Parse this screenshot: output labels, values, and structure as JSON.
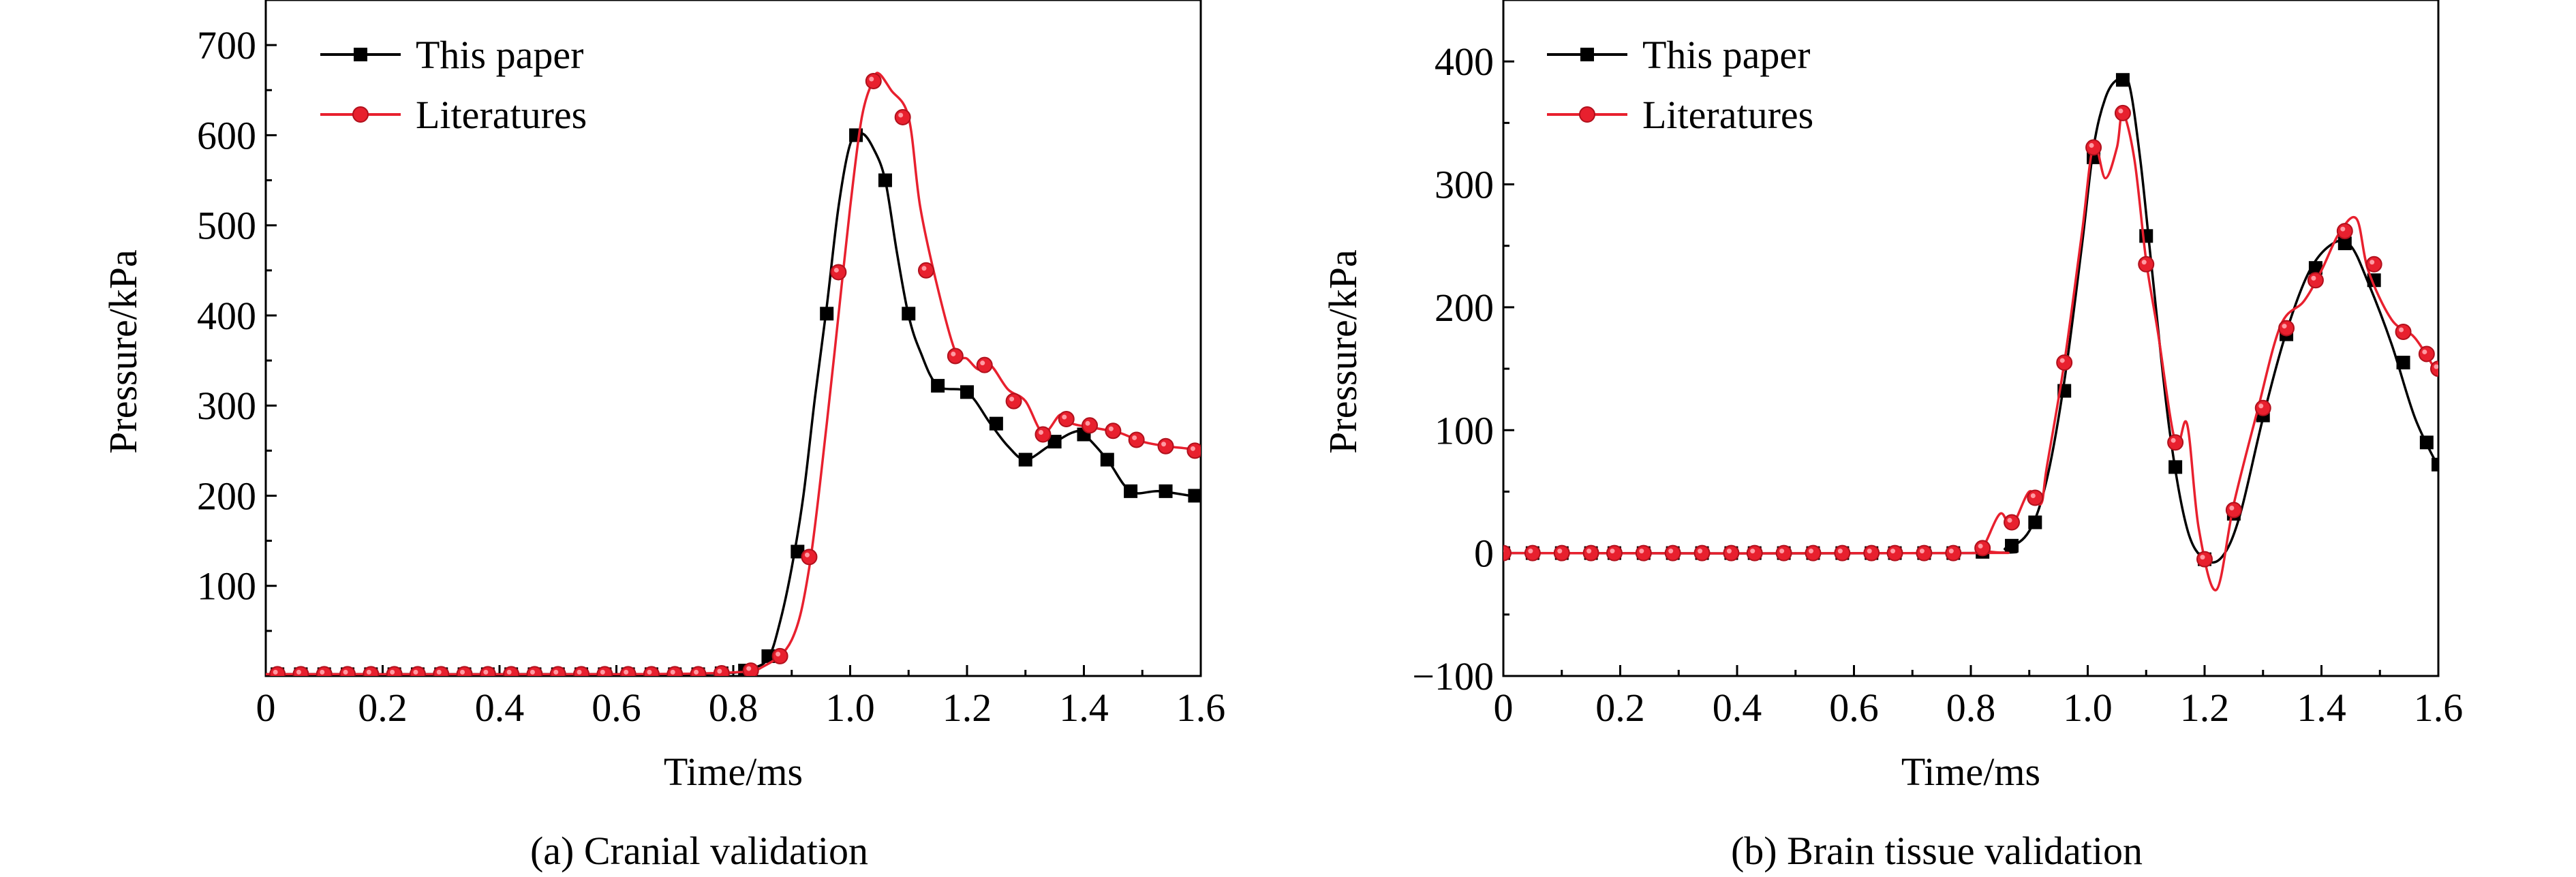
{
  "chart_data": [
    {
      "type": "line",
      "caption": "(a) Cranial validation",
      "xlabel": "Time/ms",
      "ylabel": "Pressure/kPa",
      "xlim": [
        0,
        1.6
      ],
      "ylim": [
        0,
        750
      ],
      "xticks": [
        0,
        0.2,
        0.4,
        0.6,
        0.8,
        1.0,
        1.2,
        1.4,
        1.6
      ],
      "xtick_labels": [
        "0",
        "0.2",
        "0.4",
        "0.6",
        "0.8",
        "1.0",
        "1.2",
        "1.4",
        "1.6"
      ],
      "yticks": [
        100,
        200,
        300,
        400,
        500,
        600,
        700
      ],
      "ytick_labels": [
        "100",
        "200",
        "300",
        "400",
        "500",
        "600",
        "700"
      ],
      "legend_position": "top-left",
      "series": [
        {
          "name": "This paper",
          "color": "#000000",
          "marker": "square",
          "line": [
            [
              0,
              2
            ],
            [
              0.6,
              2
            ],
            [
              0.78,
              3
            ],
            [
              0.83,
              8
            ],
            [
              0.86,
              20
            ],
            [
              0.88,
              60
            ],
            [
              0.9,
              120
            ],
            [
              0.92,
              200
            ],
            [
              0.94,
              310
            ],
            [
              0.96,
              410
            ],
            [
              0.98,
              520
            ],
            [
              1.0,
              590
            ],
            [
              1.02,
              602
            ],
            [
              1.04,
              585
            ],
            [
              1.06,
              550
            ],
            [
              1.08,
              470
            ],
            [
              1.1,
              400
            ],
            [
              1.12,
              360
            ],
            [
              1.15,
              322
            ],
            [
              1.2,
              315
            ],
            [
              1.24,
              280
            ],
            [
              1.27,
              255
            ],
            [
              1.3,
              240
            ],
            [
              1.34,
              255
            ],
            [
              1.38,
              270
            ],
            [
              1.4,
              268
            ],
            [
              1.44,
              240
            ],
            [
              1.48,
              205
            ],
            [
              1.53,
              205
            ],
            [
              1.6,
              198
            ]
          ],
          "markers": [
            [
              0.02,
              2
            ],
            [
              0.06,
              2
            ],
            [
              0.1,
              2
            ],
            [
              0.14,
              2
            ],
            [
              0.18,
              2
            ],
            [
              0.22,
              2
            ],
            [
              0.26,
              2
            ],
            [
              0.3,
              2
            ],
            [
              0.34,
              2
            ],
            [
              0.38,
              2
            ],
            [
              0.42,
              2
            ],
            [
              0.46,
              2
            ],
            [
              0.5,
              2
            ],
            [
              0.54,
              2
            ],
            [
              0.58,
              2
            ],
            [
              0.62,
              2
            ],
            [
              0.66,
              2
            ],
            [
              0.7,
              2
            ],
            [
              0.74,
              2
            ],
            [
              0.78,
              3
            ],
            [
              0.82,
              6
            ],
            [
              0.86,
              22
            ],
            [
              0.91,
              138
            ],
            [
              0.96,
              402
            ],
            [
              1.01,
              600
            ],
            [
              1.06,
              550
            ],
            [
              1.1,
              402
            ],
            [
              1.15,
              322
            ],
            [
              1.2,
              315
            ],
            [
              1.25,
              280
            ],
            [
              1.3,
              240
            ],
            [
              1.35,
              260
            ],
            [
              1.4,
              268
            ],
            [
              1.44,
              240
            ],
            [
              1.48,
              205
            ],
            [
              1.54,
              205
            ],
            [
              1.59,
              200
            ]
          ]
        },
        {
          "name": "Literatures",
          "color": "#e8202e",
          "marker": "circle",
          "line": [
            [
              0,
              2
            ],
            [
              0.6,
              2
            ],
            [
              0.8,
              4
            ],
            [
              0.85,
              10
            ],
            [
              0.9,
              40
            ],
            [
              0.93,
              120
            ],
            [
              0.96,
              280
            ],
            [
              0.98,
              400
            ],
            [
              1.0,
              520
            ],
            [
              1.02,
              620
            ],
            [
              1.04,
              662
            ],
            [
              1.05,
              668
            ],
            [
              1.07,
              650
            ],
            [
              1.1,
              620
            ],
            [
              1.12,
              520
            ],
            [
              1.15,
              430
            ],
            [
              1.18,
              360
            ],
            [
              1.2,
              352
            ],
            [
              1.22,
              340
            ],
            [
              1.24,
              345
            ],
            [
              1.27,
              318
            ],
            [
              1.3,
              305
            ],
            [
              1.33,
              270
            ],
            [
              1.36,
              290
            ],
            [
              1.38,
              280
            ],
            [
              1.42,
              275
            ],
            [
              1.46,
              270
            ],
            [
              1.5,
              260
            ],
            [
              1.54,
              255
            ],
            [
              1.58,
              252
            ],
            [
              1.6,
              248
            ]
          ],
          "markers": [
            [
              0.02,
              2
            ],
            [
              0.06,
              2
            ],
            [
              0.1,
              2
            ],
            [
              0.14,
              2
            ],
            [
              0.18,
              2
            ],
            [
              0.22,
              2
            ],
            [
              0.26,
              2
            ],
            [
              0.3,
              2
            ],
            [
              0.34,
              2
            ],
            [
              0.38,
              2
            ],
            [
              0.42,
              2
            ],
            [
              0.46,
              2
            ],
            [
              0.5,
              2
            ],
            [
              0.54,
              2
            ],
            [
              0.58,
              2
            ],
            [
              0.62,
              2
            ],
            [
              0.66,
              2
            ],
            [
              0.7,
              2
            ],
            [
              0.74,
              2
            ],
            [
              0.78,
              3
            ],
            [
              0.83,
              6
            ],
            [
              0.88,
              22
            ],
            [
              0.93,
              132
            ],
            [
              0.98,
              448
            ],
            [
              1.04,
              660
            ],
            [
              1.09,
              620
            ],
            [
              1.13,
              450
            ],
            [
              1.18,
              355
            ],
            [
              1.23,
              345
            ],
            [
              1.28,
              305
            ],
            [
              1.33,
              268
            ],
            [
              1.37,
              285
            ],
            [
              1.41,
              278
            ],
            [
              1.45,
              272
            ],
            [
              1.49,
              262
            ],
            [
              1.54,
              255
            ],
            [
              1.59,
              250
            ]
          ]
        }
      ]
    },
    {
      "type": "line",
      "caption": "(b) Brain tissue validation",
      "xlabel": "Time/ms",
      "ylabel": "Pressure/kPa",
      "xlim": [
        0,
        1.6
      ],
      "ylim": [
        -100,
        450
      ],
      "xticks": [
        0,
        0.2,
        0.4,
        0.6,
        0.8,
        1.0,
        1.2,
        1.4,
        1.6
      ],
      "xtick_labels": [
        "0",
        "0.2",
        "0.4",
        "0.6",
        "0.8",
        "1.0",
        "1.2",
        "1.4",
        "1.6"
      ],
      "yticks": [
        -100,
        0,
        100,
        200,
        300,
        400
      ],
      "ytick_labels": [
        "−100",
        "0",
        "100",
        "200",
        "300",
        "400"
      ],
      "legend_position": "top-left",
      "series": [
        {
          "name": "This paper",
          "color": "#000000",
          "marker": "square",
          "line": [
            [
              0,
              0
            ],
            [
              0.8,
              0
            ],
            [
              0.86,
              4
            ],
            [
              0.9,
              18
            ],
            [
              0.93,
              60
            ],
            [
              0.96,
              140
            ],
            [
              0.99,
              250
            ],
            [
              1.01,
              330
            ],
            [
              1.03,
              370
            ],
            [
              1.05,
              385
            ],
            [
              1.07,
              383
            ],
            [
              1.09,
              320
            ],
            [
              1.11,
              230
            ],
            [
              1.14,
              100
            ],
            [
              1.17,
              20
            ],
            [
              1.2,
              -5
            ],
            [
              1.23,
              -3
            ],
            [
              1.26,
              30
            ],
            [
              1.3,
              110
            ],
            [
              1.34,
              180
            ],
            [
              1.38,
              230
            ],
            [
              1.42,
              252
            ],
            [
              1.45,
              250
            ],
            [
              1.48,
              220
            ],
            [
              1.52,
              170
            ],
            [
              1.56,
              110
            ],
            [
              1.6,
              70
            ]
          ],
          "markers": [
            [
              0,
              0
            ],
            [
              0.05,
              0
            ],
            [
              0.1,
              0
            ],
            [
              0.15,
              0
            ],
            [
              0.19,
              0
            ],
            [
              0.24,
              0
            ],
            [
              0.29,
              0
            ],
            [
              0.34,
              0
            ],
            [
              0.39,
              0
            ],
            [
              0.43,
              0
            ],
            [
              0.48,
              0
            ],
            [
              0.53,
              0
            ],
            [
              0.58,
              0
            ],
            [
              0.63,
              0
            ],
            [
              0.67,
              0
            ],
            [
              0.72,
              0
            ],
            [
              0.77,
              0
            ],
            [
              0.82,
              1
            ],
            [
              0.87,
              6
            ],
            [
              0.91,
              25
            ],
            [
              0.96,
              132
            ],
            [
              1.01,
              322
            ],
            [
              1.06,
              385
            ],
            [
              1.1,
              258
            ],
            [
              1.15,
              70
            ],
            [
              1.2,
              -5
            ],
            [
              1.25,
              32
            ],
            [
              1.3,
              112
            ],
            [
              1.34,
              178
            ],
            [
              1.39,
              232
            ],
            [
              1.44,
              252
            ],
            [
              1.49,
              222
            ],
            [
              1.54,
              155
            ],
            [
              1.58,
              90
            ],
            [
              1.6,
              72
            ]
          ]
        },
        {
          "name": "Literatures",
          "color": "#e8202e",
          "marker": "circle",
          "line": [
            [
              0,
              0
            ],
            [
              0.8,
              0
            ],
            [
              0.82,
              4
            ],
            [
              0.85,
              32
            ],
            [
              0.87,
              22
            ],
            [
              0.9,
              50
            ],
            [
              0.92,
              40
            ],
            [
              0.93,
              70
            ],
            [
              0.96,
              155
            ],
            [
              0.99,
              260
            ],
            [
              1.01,
              332
            ],
            [
              1.03,
              305
            ],
            [
              1.05,
              330
            ],
            [
              1.06,
              358
            ],
            [
              1.08,
              320
            ],
            [
              1.1,
              238
            ],
            [
              1.12,
              180
            ],
            [
              1.15,
              90
            ],
            [
              1.17,
              105
            ],
            [
              1.19,
              20
            ],
            [
              1.22,
              -30
            ],
            [
              1.25,
              40
            ],
            [
              1.29,
              115
            ],
            [
              1.33,
              185
            ],
            [
              1.37,
              205
            ],
            [
              1.4,
              230
            ],
            [
              1.43,
              260
            ],
            [
              1.46,
              272
            ],
            [
              1.48,
              230
            ],
            [
              1.52,
              190
            ],
            [
              1.56,
              175
            ],
            [
              1.6,
              145
            ]
          ],
          "markers": [
            [
              0,
              0
            ],
            [
              0.05,
              0
            ],
            [
              0.1,
              0
            ],
            [
              0.15,
              0
            ],
            [
              0.19,
              0
            ],
            [
              0.24,
              0
            ],
            [
              0.29,
              0
            ],
            [
              0.34,
              0
            ],
            [
              0.39,
              0
            ],
            [
              0.43,
              0
            ],
            [
              0.48,
              0
            ],
            [
              0.53,
              0
            ],
            [
              0.58,
              0
            ],
            [
              0.63,
              0
            ],
            [
              0.67,
              0
            ],
            [
              0.72,
              0
            ],
            [
              0.77,
              0
            ],
            [
              0.82,
              4
            ],
            [
              0.87,
              25
            ],
            [
              0.91,
              45
            ],
            [
              0.96,
              155
            ],
            [
              1.01,
              330
            ],
            [
              1.06,
              358
            ],
            [
              1.1,
              235
            ],
            [
              1.15,
              90
            ],
            [
              1.2,
              -5
            ],
            [
              1.25,
              35
            ],
            [
              1.3,
              118
            ],
            [
              1.34,
              183
            ],
            [
              1.39,
              222
            ],
            [
              1.44,
              262
            ],
            [
              1.49,
              235
            ],
            [
              1.54,
              180
            ],
            [
              1.58,
              162
            ],
            [
              1.6,
              150
            ]
          ]
        }
      ]
    }
  ]
}
